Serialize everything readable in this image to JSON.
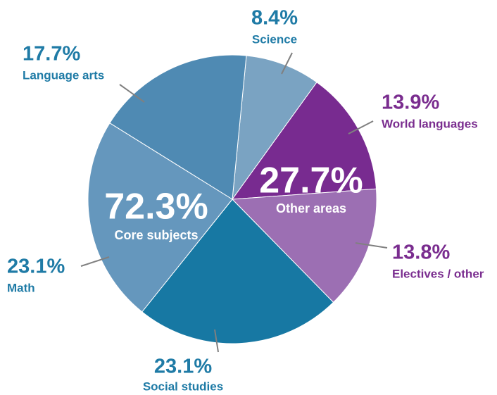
{
  "chart_data": {
    "type": "pie",
    "categories": [
      "Science",
      "World languages",
      "Electives / other",
      "Social studies",
      "Math",
      "Language arts"
    ],
    "values": [
      8.4,
      13.9,
      13.8,
      23.1,
      23.1,
      17.7
    ],
    "value_labels": [
      "8.4%",
      "13.9%",
      "13.8%",
      "23.1%",
      "23.1%",
      "17.7%"
    ],
    "colors": [
      "#7aa3c2",
      "#782b90",
      "#9c6fb3",
      "#1778a3",
      "#6597bd",
      "#4f8ab3"
    ],
    "groups": [
      {
        "name": "Core subjects",
        "value": 72.3,
        "value_label": "72.3%"
      },
      {
        "name": "Other areas",
        "value": 27.7,
        "value_label": "27.7%"
      }
    ]
  }
}
